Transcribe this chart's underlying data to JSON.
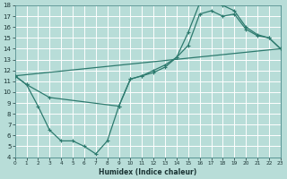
{
  "xlabel": "Humidex (Indice chaleur)",
  "background_color": "#b8ddd8",
  "grid_color": "#ffffff",
  "line_color": "#2d7a6e",
  "xlim": [
    0,
    23
  ],
  "ylim": [
    4,
    18
  ],
  "xticks": [
    0,
    1,
    2,
    3,
    4,
    5,
    6,
    7,
    8,
    9,
    10,
    11,
    12,
    13,
    14,
    15,
    16,
    17,
    18,
    19,
    20,
    21,
    22,
    23
  ],
  "yticks": [
    4,
    5,
    6,
    7,
    8,
    9,
    10,
    11,
    12,
    13,
    14,
    15,
    16,
    17,
    18
  ],
  "curve1_x": [
    0,
    1,
    2,
    3,
    4,
    5,
    6,
    7,
    8,
    9,
    10,
    11,
    12,
    13,
    14,
    15,
    16,
    17,
    18,
    19,
    20,
    21,
    22,
    23
  ],
  "curve1_y": [
    11.5,
    10.7,
    8.7,
    6.5,
    5.5,
    5.5,
    5.0,
    4.3,
    5.5,
    8.7,
    11.2,
    11.5,
    11.8,
    12.3,
    13.2,
    15.5,
    18.2,
    18.5,
    18.0,
    17.5,
    16.0,
    15.3,
    15.0,
    14.0
  ],
  "curve2_x": [
    0,
    1,
    3,
    9,
    10,
    11,
    12,
    13,
    14,
    15,
    16,
    17,
    18,
    19,
    20,
    21,
    22,
    23
  ],
  "curve2_y": [
    11.5,
    10.7,
    9.5,
    8.7,
    11.2,
    11.5,
    12.0,
    12.5,
    13.2,
    14.3,
    17.2,
    17.5,
    17.0,
    17.2,
    15.8,
    15.2,
    15.0,
    14.0
  ],
  "curve3_x": [
    0,
    23
  ],
  "curve3_y": [
    11.5,
    14.0
  ]
}
